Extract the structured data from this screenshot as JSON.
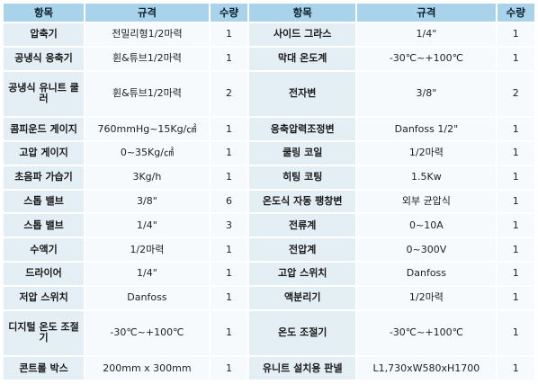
{
  "headers": [
    "항목",
    "규격",
    "수량",
    "항목",
    "규격",
    "수량"
  ],
  "rows": [
    [
      {
        "item": "압축기",
        "spec": "전밀리형1/2마력",
        "qty": "1"
      },
      {
        "item": "사이드 그라스",
        "spec": "1/4\"",
        "qty": "1"
      }
    ],
    [
      {
        "item": "공냉식 응축기",
        "spec": "휜&튜브1/2마력",
        "qty": "1"
      },
      {
        "item": "막대 온도계",
        "spec": "-30℃~+100℃",
        "qty": "1"
      }
    ],
    [
      {
        "item": "공냉식 유니트 쿨러",
        "spec": "휜&튜브1/2마력",
        "qty": "2"
      },
      {
        "item": "전자변",
        "spec": "3/8\"",
        "qty": "2"
      }
    ],
    [
      {
        "item": "콤피운드 게이지",
        "spec": "760mmHg~15Kg/㎠",
        "qty": "1"
      },
      {
        "item": "응축압력조정변",
        "spec": "Danfoss 1/2\"",
        "qty": "1"
      }
    ],
    [
      {
        "item": "고압 게이지",
        "spec": "0~35Kg/㎠",
        "qty": "1"
      },
      {
        "item": "쿨링 코일",
        "spec": "1/2마력",
        "qty": "1"
      }
    ],
    [
      {
        "item": "초음파 가습기",
        "spec": "3Kg/h",
        "qty": "1"
      },
      {
        "item": "히팅 코팅",
        "spec": "1.5Kw",
        "qty": "1"
      }
    ],
    [
      {
        "item": "스톱 밸브",
        "spec": "3/8\"",
        "qty": "6"
      },
      {
        "item": "온도식 자동 팽창변",
        "spec": "외부 균압식",
        "qty": "1"
      }
    ],
    [
      {
        "item": "스톱 밸브",
        "spec": "1/4\"",
        "qty": "3"
      },
      {
        "item": "전류계",
        "spec": "0~10A",
        "qty": "1"
      }
    ],
    [
      {
        "item": "수액기",
        "spec": "1/2마력",
        "qty": "1"
      },
      {
        "item": "전압계",
        "spec": "0~300V",
        "qty": "1"
      }
    ],
    [
      {
        "item": "드라이어",
        "spec": "1/4\"",
        "qty": "1"
      },
      {
        "item": "고압 스위치",
        "spec": "Danfoss",
        "qty": "1"
      }
    ],
    [
      {
        "item": "저압 스위치",
        "spec": "Danfoss",
        "qty": "1"
      },
      {
        "item": "액분리기",
        "spec": "1/2마력",
        "qty": "1"
      }
    ],
    [
      {
        "item": "디지털 온도 조절기",
        "spec": "-30℃~+100℃",
        "qty": "1"
      },
      {
        "item": "온도 조절기",
        "spec": "-30℃~+100℃",
        "qty": "1"
      }
    ],
    [
      {
        "item": "콘트롤 박스",
        "spec": "200mm x 300mm",
        "qty": "1"
      },
      {
        "item": "유니트 설치용 판넬",
        "spec": "L1,730xW580xH1700",
        "qty": "1"
      }
    ]
  ]
}
